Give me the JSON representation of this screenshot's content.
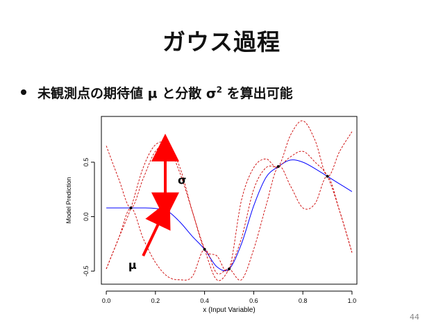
{
  "slide": {
    "title": "ガウス過程",
    "bullet_pre": "未観測点の期待値 μ と分散 σ",
    "bullet_sup": "2",
    "bullet_post": " を算出可能",
    "page_number": "44"
  },
  "annotations": {
    "sigma_label": "σ",
    "mu_label": "μ",
    "arrow_color": "#ff0000"
  },
  "chart_data": {
    "type": "line",
    "xlabel": "x (Input Variable)",
    "ylabel": "Model Prediction",
    "xlim": [
      -0.02,
      1.02
    ],
    "ylim": [
      -0.62,
      0.92
    ],
    "xticks": [
      0.0,
      0.2,
      0.4,
      0.6,
      0.8,
      1.0
    ],
    "xtick_labels": [
      "0.0",
      "0.2",
      "0.4",
      "0.6",
      "0.8",
      "1.0"
    ],
    "yticks": [
      -0.5,
      0.0,
      0.5
    ],
    "ytick_labels": [
      "-0.5",
      "0.0",
      "0.5"
    ],
    "grid": false,
    "colors": {
      "mean": "#0000ff",
      "bounds": "#cc0000",
      "points": "#000000"
    },
    "observations": {
      "x": [
        0.1,
        0.4,
        0.5,
        0.7,
        0.9
      ],
      "y": [
        0.08,
        -0.3,
        -0.48,
        0.46,
        0.37
      ]
    },
    "series": [
      {
        "role": "mean",
        "style": "solid",
        "x": [
          0.0,
          0.05,
          0.1,
          0.15,
          0.2,
          0.25,
          0.3,
          0.35,
          0.4,
          0.45,
          0.5,
          0.55,
          0.6,
          0.65,
          0.7,
          0.75,
          0.8,
          0.85,
          0.9,
          0.95,
          1.0
        ],
        "y": [
          0.08,
          0.08,
          0.08,
          0.08,
          0.075,
          0.05,
          -0.05,
          -0.18,
          -0.3,
          -0.46,
          -0.48,
          -0.25,
          0.1,
          0.36,
          0.46,
          0.52,
          0.5,
          0.44,
          0.37,
          0.3,
          0.23
        ]
      },
      {
        "role": "upper",
        "style": "dashed",
        "x": [
          0.0,
          0.05,
          0.1,
          0.15,
          0.2,
          0.25,
          0.3,
          0.35,
          0.4,
          0.45,
          0.5,
          0.55,
          0.6,
          0.65,
          0.7,
          0.75,
          0.8,
          0.85,
          0.9,
          0.95,
          1.0
        ],
        "y": [
          0.65,
          0.35,
          0.08,
          0.35,
          0.6,
          0.64,
          0.4,
          0.05,
          -0.3,
          -0.36,
          -0.48,
          0.15,
          0.45,
          0.53,
          0.46,
          0.75,
          0.88,
          0.7,
          0.37,
          0.6,
          0.78
        ]
      },
      {
        "role": "lower",
        "style": "dashed",
        "x": [
          0.0,
          0.05,
          0.1,
          0.15,
          0.2,
          0.25,
          0.3,
          0.35,
          0.4,
          0.45,
          0.5,
          0.55,
          0.6,
          0.65,
          0.7,
          0.75,
          0.8,
          0.85,
          0.9,
          0.95,
          1.0
        ],
        "y": [
          -0.48,
          -0.2,
          0.08,
          -0.2,
          -0.42,
          -0.55,
          -0.58,
          -0.55,
          -0.3,
          -0.52,
          -0.48,
          -0.58,
          -0.3,
          0.1,
          0.46,
          0.28,
          0.08,
          0.12,
          0.37,
          0.05,
          -0.33
        ]
      },
      {
        "role": "upper2",
        "style": "dashed",
        "x": [
          0.0,
          0.05,
          0.1,
          0.15,
          0.2,
          0.25,
          0.3,
          0.35,
          0.4,
          0.45,
          0.5,
          0.55,
          0.6,
          0.65,
          0.7,
          0.75,
          0.8,
          0.85,
          0.9,
          0.95,
          1.0
        ],
        "y": [
          -0.48,
          -0.2,
          0.08,
          0.45,
          0.66,
          0.66,
          0.45,
          0.05,
          -0.3,
          -0.58,
          -0.48,
          -0.2,
          0.25,
          0.45,
          0.46,
          0.55,
          0.6,
          0.5,
          0.37,
          0.05,
          -0.33
        ]
      }
    ]
  }
}
